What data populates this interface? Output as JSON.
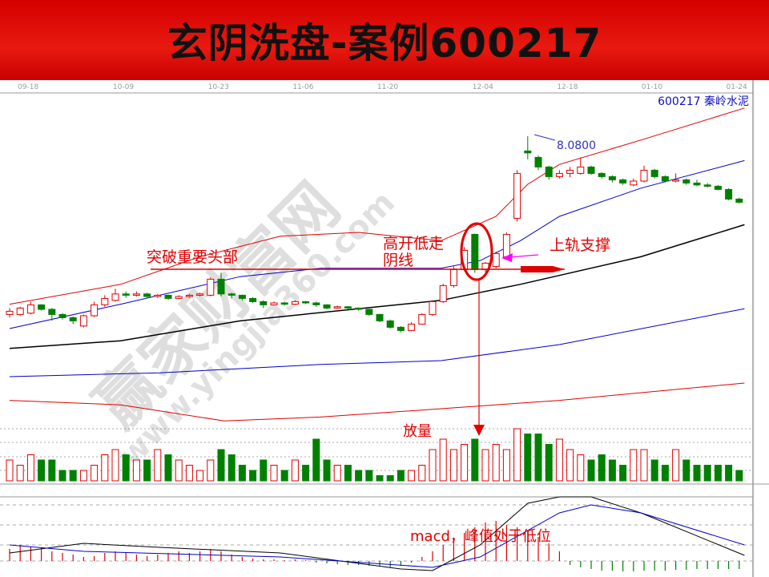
{
  "title": "玄阴洗盘-案例600217",
  "stock_label": "600217 秦岭水泥",
  "watermark": {
    "cn": "赢家财富网",
    "url": "www.yingjia360.com"
  },
  "colors": {
    "up": "#e00000",
    "down": "#008000",
    "upper_band": "#e00000",
    "mid_band": "#0000cc",
    "ma_black": "#000000",
    "dif": "#000000",
    "dea": "#0000cc",
    "annotation": "#e00000",
    "arrow_magenta": "#ff00ff",
    "title_bg": "#e00000"
  },
  "annotations": {
    "breakout": "突破重要头部",
    "gap_up_line1": "高开低走",
    "gap_up_line2": "阴线",
    "support": "上轨支撑",
    "volume": "放量",
    "macd": "macd，峰值处于低位",
    "high_label": "8.0800"
  },
  "chart_data": {
    "type": "candlestick",
    "x_tick_labels": [
      "09-18",
      "10-09",
      "10-23",
      "11-06",
      "11-20",
      "12-04",
      "12-18",
      "01-10",
      "01-24"
    ],
    "x_tick_index": [
      1,
      10,
      19,
      27,
      35,
      44,
      52,
      60,
      68
    ],
    "candles_ohlcv": [
      [
        5.3,
        5.4,
        5.25,
        5.35,
        4
      ],
      [
        5.3,
        5.42,
        5.28,
        5.4,
        3
      ],
      [
        5.32,
        5.5,
        5.3,
        5.45,
        5
      ],
      [
        5.45,
        5.46,
        5.36,
        5.38,
        4
      ],
      [
        5.38,
        5.4,
        5.2,
        5.3,
        4
      ],
      [
        5.3,
        5.32,
        5.22,
        5.25,
        2
      ],
      [
        5.25,
        5.27,
        5.15,
        5.2,
        2
      ],
      [
        5.12,
        5.3,
        5.1,
        5.28,
        2
      ],
      [
        5.28,
        5.5,
        5.26,
        5.45,
        3
      ],
      [
        5.45,
        5.6,
        5.42,
        5.55,
        5
      ],
      [
        5.52,
        5.7,
        5.5,
        5.62,
        6
      ],
      [
        5.62,
        5.66,
        5.56,
        5.6,
        5
      ],
      [
        5.6,
        5.66,
        5.58,
        5.62,
        4
      ],
      [
        5.62,
        5.64,
        5.55,
        5.58,
        4
      ],
      [
        5.58,
        5.62,
        5.56,
        5.6,
        6
      ],
      [
        5.6,
        5.61,
        5.53,
        5.55,
        5
      ],
      [
        5.55,
        5.6,
        5.54,
        5.58,
        4
      ],
      [
        5.58,
        5.62,
        5.56,
        5.6,
        3
      ],
      [
        5.6,
        5.64,
        5.58,
        5.62,
        2
      ],
      [
        5.6,
        5.88,
        5.58,
        5.85,
        4
      ],
      [
        5.85,
        5.95,
        5.58,
        5.62,
        6
      ],
      [
        5.62,
        5.64,
        5.55,
        5.6,
        5
      ],
      [
        5.6,
        5.61,
        5.52,
        5.55,
        3
      ],
      [
        5.55,
        5.57,
        5.48,
        5.5,
        2
      ],
      [
        5.5,
        5.52,
        5.4,
        5.45,
        4
      ],
      [
        5.45,
        5.5,
        5.44,
        5.48,
        3
      ],
      [
        5.48,
        5.5,
        5.44,
        5.46,
        2
      ],
      [
        5.46,
        5.52,
        5.45,
        5.5,
        4
      ],
      [
        5.5,
        5.51,
        5.46,
        5.48,
        3
      ],
      [
        5.48,
        5.5,
        5.42,
        5.45,
        8
      ],
      [
        5.45,
        5.46,
        5.38,
        5.4,
        4
      ],
      [
        5.4,
        5.44,
        5.39,
        5.42,
        3
      ],
      [
        5.42,
        5.43,
        5.38,
        5.4,
        3
      ],
      [
        5.4,
        5.41,
        5.36,
        5.38,
        2
      ],
      [
        5.38,
        5.39,
        5.28,
        5.3,
        2
      ],
      [
        5.3,
        5.31,
        5.18,
        5.2,
        1
      ],
      [
        5.2,
        5.22,
        5.08,
        5.1,
        1
      ],
      [
        5.1,
        5.12,
        5.02,
        5.05,
        2
      ],
      [
        5.05,
        5.18,
        5.04,
        5.15,
        2
      ],
      [
        5.15,
        5.32,
        5.14,
        5.3,
        3
      ],
      [
        5.3,
        5.52,
        5.28,
        5.5,
        6
      ],
      [
        5.5,
        5.78,
        5.48,
        5.75,
        8
      ],
      [
        5.75,
        6.05,
        5.72,
        6.0,
        6
      ],
      [
        6.0,
        6.35,
        5.98,
        6.3,
        7
      ],
      [
        6.55,
        6.56,
        5.95,
        6.0,
        8
      ],
      [
        6.0,
        6.12,
        5.96,
        6.1,
        6
      ],
      [
        6.05,
        6.28,
        6.02,
        6.25,
        7
      ],
      [
        6.2,
        6.58,
        6.18,
        6.55,
        6
      ],
      [
        6.8,
        7.55,
        6.75,
        7.5,
        10
      ],
      [
        7.85,
        8.08,
        7.72,
        7.82,
        9
      ],
      [
        7.75,
        7.78,
        7.55,
        7.6,
        9
      ],
      [
        7.6,
        7.62,
        7.4,
        7.45,
        7
      ],
      [
        7.45,
        7.55,
        7.42,
        7.5,
        8
      ],
      [
        7.5,
        7.6,
        7.44,
        7.55,
        6
      ],
      [
        7.5,
        7.75,
        7.48,
        7.6,
        5
      ],
      [
        7.6,
        7.62,
        7.48,
        7.5,
        4
      ],
      [
        7.5,
        7.52,
        7.42,
        7.45,
        5
      ],
      [
        7.45,
        7.47,
        7.36,
        7.4,
        4
      ],
      [
        7.4,
        7.42,
        7.32,
        7.35,
        3
      ],
      [
        7.32,
        7.42,
        7.3,
        7.38,
        6
      ],
      [
        7.38,
        7.62,
        7.36,
        7.55,
        6
      ],
      [
        7.55,
        7.57,
        7.42,
        7.45,
        4
      ],
      [
        7.45,
        7.47,
        7.36,
        7.38,
        3
      ],
      [
        7.38,
        7.5,
        7.36,
        7.4,
        6
      ],
      [
        7.4,
        7.42,
        7.32,
        7.35,
        4
      ],
      [
        7.35,
        7.4,
        7.3,
        7.32,
        3
      ],
      [
        7.32,
        7.35,
        7.28,
        7.3,
        3
      ],
      [
        7.3,
        7.32,
        7.24,
        7.25,
        3
      ],
      [
        7.25,
        7.27,
        7.08,
        7.1,
        3
      ],
      [
        7.1,
        7.12,
        7.03,
        7.05,
        2
      ]
    ],
    "bands": {
      "upper_red": [
        [
          0,
          5.46
        ],
        [
          10.5,
          5.77
        ],
        [
          18,
          6.2
        ],
        [
          25.6,
          6.52
        ],
        [
          33,
          6.58
        ],
        [
          40.8,
          6.45
        ],
        [
          46,
          6.83
        ],
        [
          49,
          7.33
        ],
        [
          52,
          7.64
        ],
        [
          59.7,
          8.02
        ],
        [
          69.5,
          8.52
        ]
      ],
      "mid_blue": [
        [
          0,
          5.08
        ],
        [
          10.5,
          5.46
        ],
        [
          21.8,
          5.89
        ],
        [
          29.4,
          6.02
        ],
        [
          40.8,
          6.02
        ],
        [
          44.5,
          6.14
        ],
        [
          48.3,
          6.45
        ],
        [
          52,
          6.83
        ],
        [
          59.7,
          7.27
        ],
        [
          69.5,
          7.7
        ]
      ],
      "black": [
        [
          0,
          4.77
        ],
        [
          10.5,
          4.89
        ],
        [
          21.8,
          5.2
        ],
        [
          33,
          5.39
        ],
        [
          40.8,
          5.52
        ],
        [
          48.3,
          5.77
        ],
        [
          59.7,
          6.2
        ],
        [
          69.5,
          6.7
        ]
      ],
      "lower_blue": [
        [
          0,
          4.33
        ],
        [
          14.2,
          4.39
        ],
        [
          29.4,
          4.52
        ],
        [
          40.8,
          4.58
        ],
        [
          52,
          4.83
        ],
        [
          69.5,
          5.39
        ]
      ],
      "lower_red": [
        [
          0,
          3.96
        ],
        [
          10.5,
          3.89
        ],
        [
          20.3,
          3.64
        ],
        [
          29.4,
          3.7
        ],
        [
          40.8,
          3.83
        ],
        [
          52,
          3.96
        ],
        [
          69.5,
          4.23
        ]
      ]
    },
    "macd": {
      "dif": [
        [
          0,
          0.1
        ],
        [
          7,
          0.22
        ],
        [
          14.2,
          0.17
        ],
        [
          25.6,
          0.1
        ],
        [
          37,
          -0.1
        ],
        [
          40,
          -0.12
        ],
        [
          44.5,
          0.2
        ],
        [
          49,
          0.72
        ],
        [
          52,
          0.8
        ],
        [
          55,
          0.8
        ],
        [
          59.7,
          0.6
        ],
        [
          69.5,
          0.07
        ]
      ],
      "dea": [
        [
          0,
          0.2
        ],
        [
          7,
          0.12
        ],
        [
          25.6,
          0.05
        ],
        [
          40,
          -0.08
        ],
        [
          44.5,
          0.05
        ],
        [
          52,
          0.6
        ],
        [
          55,
          0.7
        ],
        [
          59.7,
          0.6
        ],
        [
          69.5,
          0.2
        ]
      ],
      "hist": [
        0.15,
        0.2,
        0.18,
        0.16,
        0.12,
        0.1,
        0.08,
        0.05,
        0.06,
        0.1,
        0.12,
        0.1,
        0.08,
        0.06,
        0.08,
        0.1,
        0.12,
        0.1,
        0.12,
        0.15,
        0.12,
        0.08,
        0.05,
        0.03,
        0.02,
        0.02,
        0.01,
        0.02,
        0.01,
        -0.02,
        -0.03,
        -0.04,
        -0.05,
        -0.05,
        -0.06,
        -0.07,
        -0.08,
        -0.06,
        -0.02,
        0.05,
        0.12,
        0.2,
        0.28,
        0.35,
        0.42,
        0.48,
        0.5,
        0.45,
        0.42,
        0.38,
        0.3,
        0.22,
        0.12,
        -0.05,
        -0.08,
        -0.1,
        -0.12,
        -0.12,
        -0.13,
        -0.13,
        -0.12,
        -0.12,
        -0.12,
        -0.11,
        -0.11,
        -0.1,
        -0.1,
        -0.1,
        -0.1,
        -0.1
      ]
    }
  }
}
